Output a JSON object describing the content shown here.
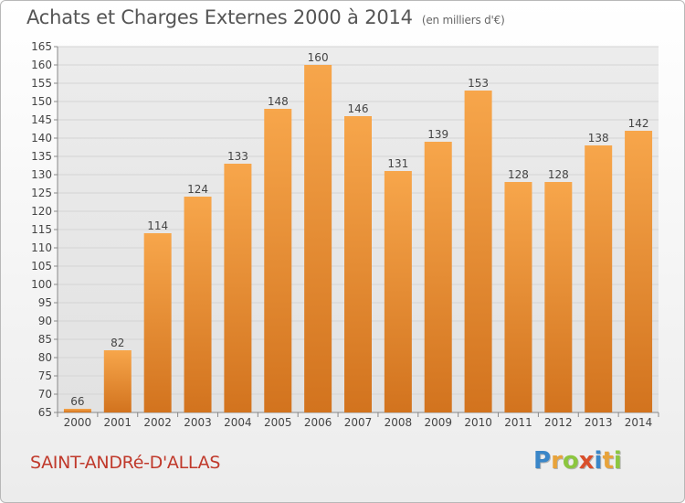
{
  "title": "Achats et Charges Externes 2000 à 2014",
  "subtitle": "(en milliers d'€)",
  "commune": "SAINT-ANDRé-D'ALLAS",
  "logo": {
    "letters": [
      "P",
      "r",
      "o",
      "x",
      "i",
      "t",
      "i"
    ],
    "colors": [
      "#3a86c8",
      "#e8a33a",
      "#8cc63f",
      "#d94f2b",
      "#3a86c8",
      "#e8a33a",
      "#8cc63f"
    ]
  },
  "colors": {
    "bar_top": "#f7a64b",
    "bar_bottom": "#d2731e",
    "grid": "#d4d4d4",
    "text": "#444444"
  },
  "chart_data": {
    "type": "bar",
    "categories": [
      "2000",
      "2001",
      "2002",
      "2003",
      "2004",
      "2005",
      "2006",
      "2007",
      "2008",
      "2009",
      "2010",
      "2011",
      "2012",
      "2013",
      "2014"
    ],
    "values": [
      66,
      82,
      114,
      124,
      133,
      148,
      160,
      146,
      131,
      139,
      153,
      128,
      128,
      138,
      142
    ],
    "ylim": [
      65,
      165
    ],
    "ytick_step": 5,
    "grid": true,
    "legend": "none"
  }
}
